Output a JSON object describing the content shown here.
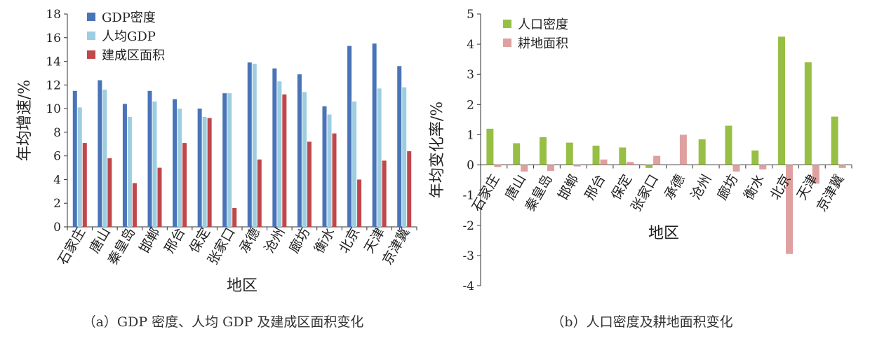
{
  "chart_data": [
    {
      "type": "bar",
      "categories": [
        "石家庄",
        "唐山",
        "秦皇岛",
        "邯郸",
        "邢台",
        "保定",
        "张家口",
        "承德",
        "沧州",
        "廊坊",
        "衡水",
        "北京",
        "天津",
        "京津冀"
      ],
      "series": [
        {
          "name": "GDP密度",
          "color": "#4a74b8",
          "values": [
            11.5,
            12.4,
            10.4,
            11.5,
            10.8,
            10.0,
            11.3,
            13.9,
            13.4,
            12.9,
            10.2,
            15.3,
            15.5,
            13.6
          ]
        },
        {
          "name": "人均GDP",
          "color": "#9dcde0",
          "values": [
            10.1,
            11.6,
            9.3,
            10.6,
            10.0,
            9.3,
            11.3,
            13.8,
            12.3,
            11.4,
            9.5,
            10.6,
            11.7,
            11.8
          ]
        },
        {
          "name": "建成区面积",
          "color": "#c0474a",
          "values": [
            7.1,
            5.8,
            3.7,
            5.0,
            7.1,
            9.2,
            1.6,
            5.7,
            11.2,
            7.2,
            7.9,
            4.0,
            5.6,
            6.4
          ]
        }
      ],
      "xlabel": "地区",
      "ylabel": "年均增速/%",
      "ylim": [
        0,
        18
      ],
      "yticks": [
        "0",
        "2",
        "4",
        "6",
        "8",
        "10",
        "12",
        "14",
        "16",
        "18"
      ],
      "legend": "top-left",
      "grid": false,
      "caption": "（a）GDP 密度、人均 GDP 及建成区面积变化"
    },
    {
      "type": "bar",
      "categories": [
        "石家庄",
        "唐山",
        "秦皇岛",
        "邯郸",
        "邢台",
        "保定",
        "张家口",
        "承德",
        "沧州",
        "廊坊",
        "衡水",
        "北京",
        "天津",
        "京津冀"
      ],
      "series": [
        {
          "name": "人口密度",
          "color": "#98bf45",
          "values": [
            1.2,
            0.72,
            0.92,
            0.74,
            0.64,
            0.58,
            -0.1,
            0.0,
            0.85,
            1.3,
            0.48,
            4.25,
            3.4,
            1.6
          ]
        },
        {
          "name": "耕地面积",
          "color": "#dfa0a0",
          "values": [
            -0.07,
            -0.22,
            -0.2,
            -0.05,
            0.18,
            0.1,
            0.3,
            1.0,
            0.0,
            -0.22,
            -0.15,
            -2.95,
            -0.62,
            -0.1
          ]
        }
      ],
      "xlabel": "地区",
      "ylabel": "年均变化率/%",
      "ylim": [
        -4,
        5
      ],
      "yticks": [
        "-4",
        "-3",
        "-2",
        "-1",
        "0",
        "1",
        "2",
        "3",
        "4",
        "5"
      ],
      "legend": "top-left",
      "grid": false,
      "caption": "（b）人口密度及耕地面积变化"
    }
  ]
}
